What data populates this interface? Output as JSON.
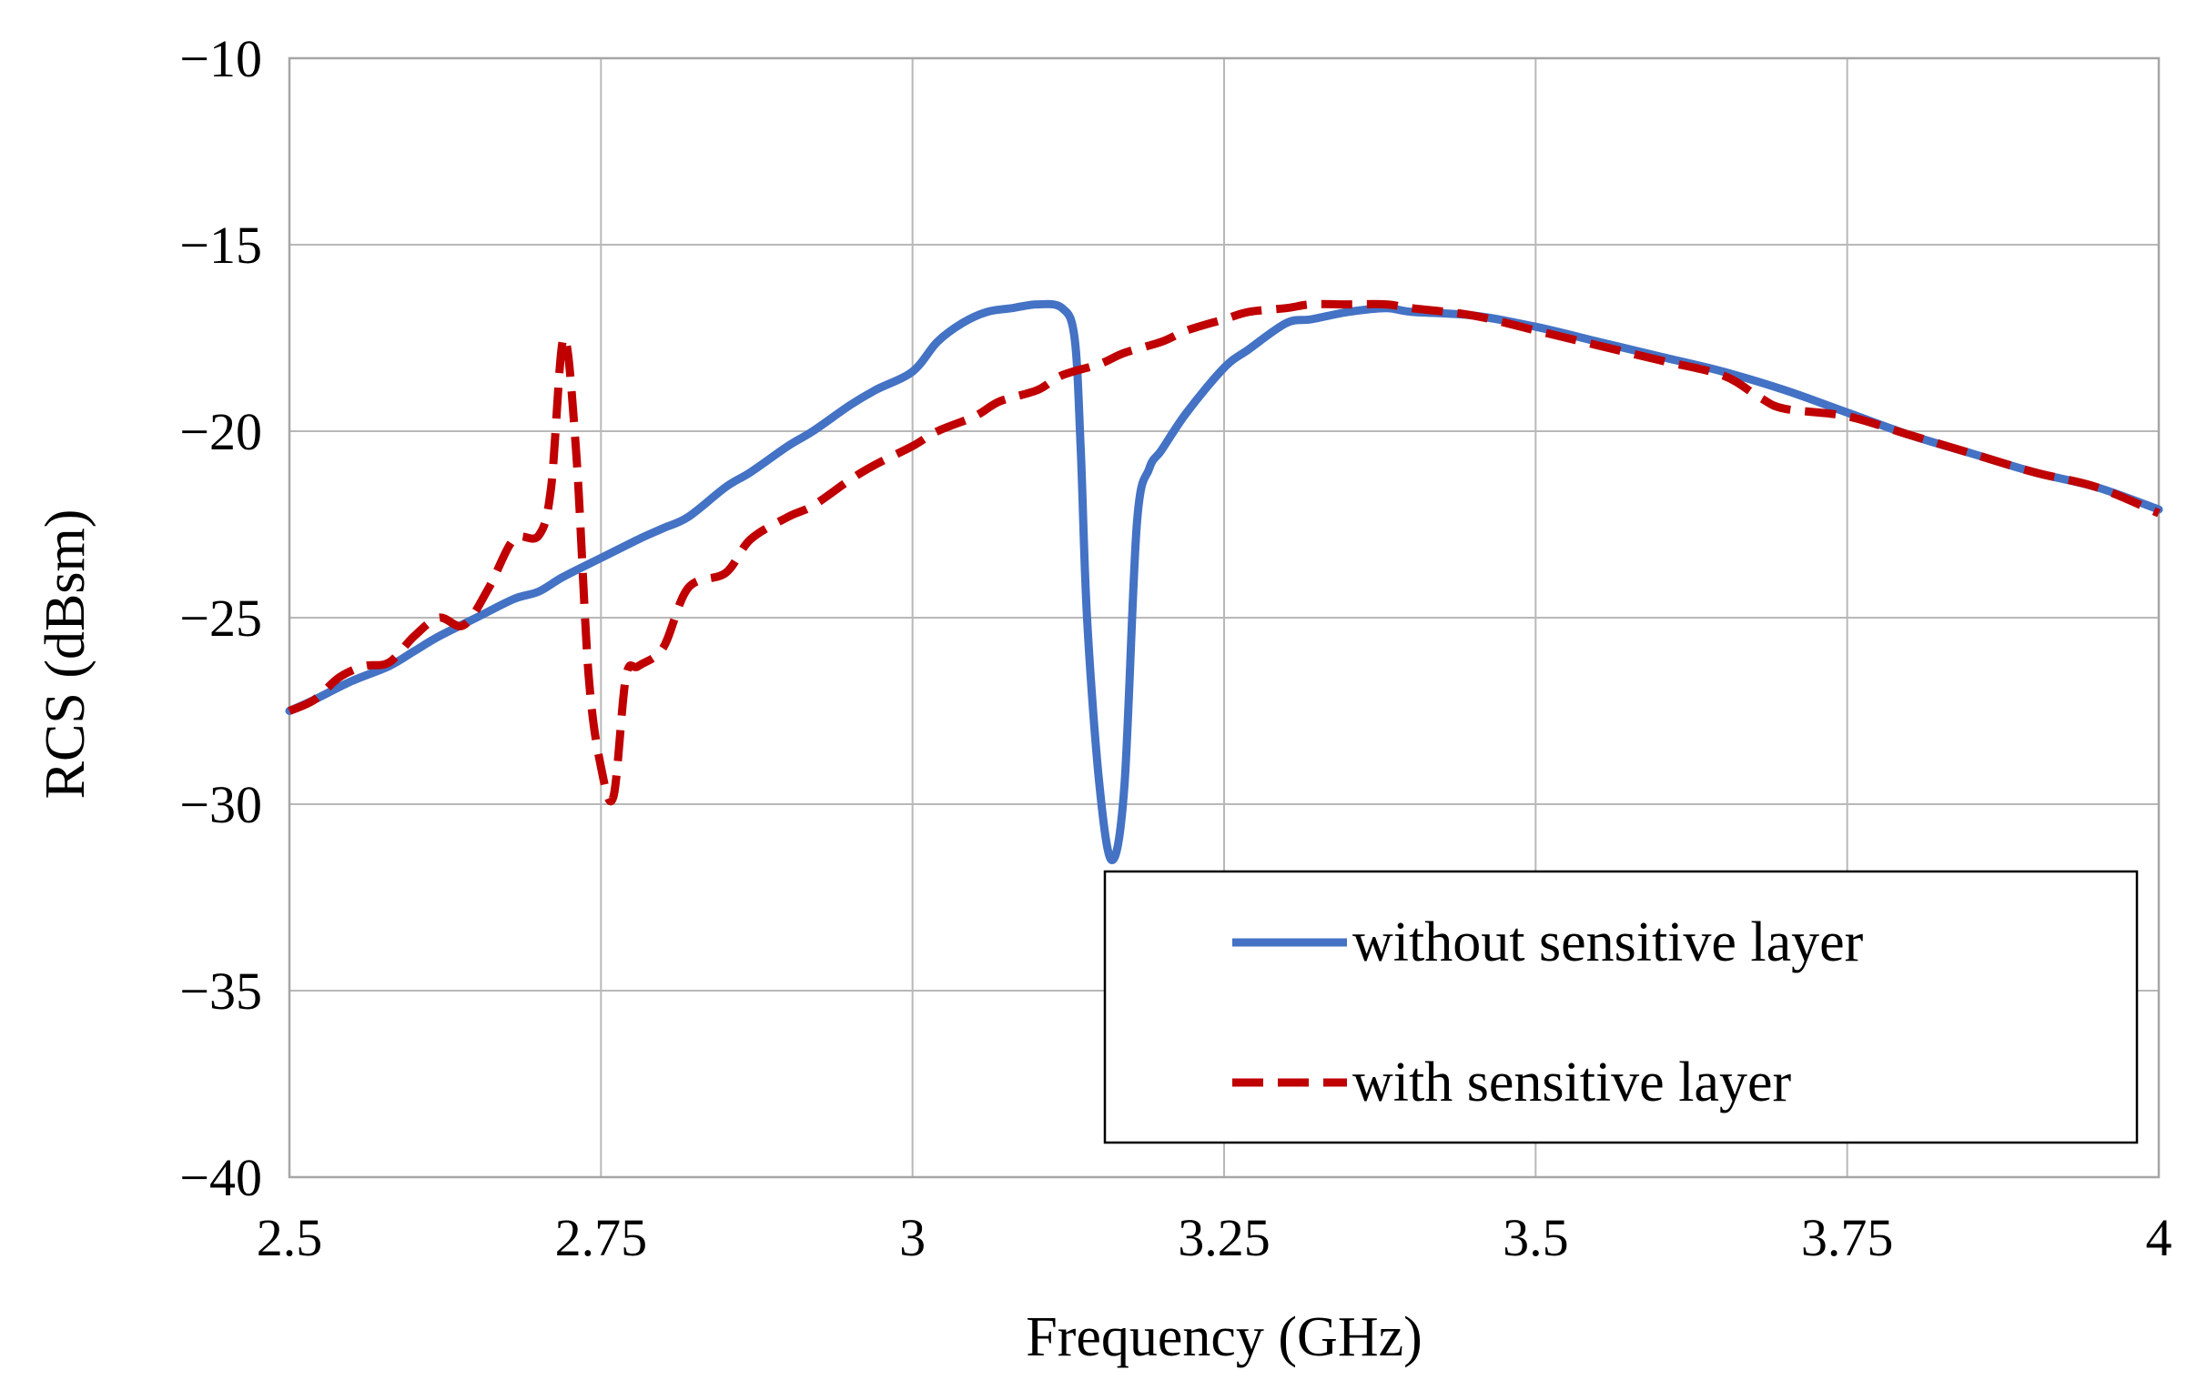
{
  "chart_data": {
    "type": "line",
    "title": "",
    "xlabel": "Frequency (GHz)",
    "ylabel": "RCS (dBsm)",
    "xlim": [
      2.5,
      4
    ],
    "ylim": [
      -40,
      -10
    ],
    "x_ticks": [
      2.5,
      2.75,
      3,
      3.25,
      3.5,
      3.75,
      4
    ],
    "x_tick_labels": [
      "2.5",
      "2.75",
      "3",
      "3.25",
      "3.5",
      "3.75",
      "4"
    ],
    "y_ticks": [
      -10,
      -15,
      -20,
      -25,
      -30,
      -35,
      -40
    ],
    "y_tick_labels": [
      "−10",
      "−15",
      "−20",
      "−25",
      "−30",
      "−35",
      "−40"
    ],
    "grid": true,
    "legend_position": "bottom-right",
    "series": [
      {
        "name": "without sensitive layer",
        "color": "#4472C4",
        "dash": "solid",
        "x": [
          2.5,
          2.52,
          2.55,
          2.58,
          2.6,
          2.62,
          2.65,
          2.68,
          2.7,
          2.72,
          2.75,
          2.78,
          2.8,
          2.82,
          2.85,
          2.87,
          2.9,
          2.92,
          2.95,
          2.97,
          3.0,
          3.02,
          3.04,
          3.06,
          3.08,
          3.1,
          3.12,
          3.13,
          3.135,
          3.14,
          3.15,
          3.16,
          3.17,
          3.18,
          3.19,
          3.2,
          3.22,
          3.25,
          3.27,
          3.3,
          3.32,
          3.35,
          3.38,
          3.4,
          3.45,
          3.5,
          3.55,
          3.6,
          3.65,
          3.7,
          3.75,
          3.8,
          3.85,
          3.9,
          3.95,
          4.0
        ],
        "y": [
          -27.5,
          -27.2,
          -26.7,
          -26.3,
          -25.9,
          -25.5,
          -25.0,
          -24.5,
          -24.3,
          -23.9,
          -23.4,
          -22.9,
          -22.6,
          -22.3,
          -21.5,
          -21.1,
          -20.4,
          -20.0,
          -19.3,
          -18.9,
          -18.4,
          -17.6,
          -17.1,
          -16.8,
          -16.7,
          -16.6,
          -16.7,
          -17.5,
          -20.5,
          -25.0,
          -29.5,
          -31.5,
          -29.5,
          -22.5,
          -21.0,
          -20.5,
          -19.5,
          -18.3,
          -17.8,
          -17.1,
          -17.0,
          -16.8,
          -16.7,
          -16.8,
          -16.9,
          -17.2,
          -17.6,
          -18.0,
          -18.4,
          -18.9,
          -19.5,
          -20.1,
          -20.6,
          -21.1,
          -21.5,
          -22.1
        ]
      },
      {
        "name": "with sensitive layer",
        "color": "#C00000",
        "dash": "dashed",
        "x": [
          2.5,
          2.52,
          2.54,
          2.56,
          2.58,
          2.6,
          2.62,
          2.64,
          2.66,
          2.68,
          2.7,
          2.71,
          2.72,
          2.73,
          2.74,
          2.75,
          2.76,
          2.77,
          2.78,
          2.8,
          2.82,
          2.85,
          2.87,
          2.9,
          2.92,
          2.95,
          2.97,
          3.0,
          3.02,
          3.05,
          3.07,
          3.1,
          3.12,
          3.15,
          3.17,
          3.2,
          3.22,
          3.25,
          3.27,
          3.3,
          3.32,
          3.35,
          3.38,
          3.4,
          3.45,
          3.5,
          3.55,
          3.6,
          3.65,
          3.68,
          3.7,
          3.75,
          3.8,
          3.85,
          3.9,
          3.95,
          4.0
        ],
        "y": [
          -27.5,
          -27.2,
          -26.6,
          -26.3,
          -26.2,
          -25.5,
          -25.0,
          -25.2,
          -24.2,
          -22.9,
          -22.8,
          -21.5,
          -17.5,
          -20.5,
          -26.5,
          -29.0,
          -29.8,
          -26.6,
          -26.3,
          -25.8,
          -24.2,
          -23.8,
          -22.9,
          -22.3,
          -22.0,
          -21.3,
          -20.9,
          -20.4,
          -20.0,
          -19.6,
          -19.2,
          -18.9,
          -18.5,
          -18.2,
          -17.9,
          -17.6,
          -17.3,
          -17.0,
          -16.8,
          -16.7,
          -16.6,
          -16.6,
          -16.6,
          -16.7,
          -16.9,
          -17.3,
          -17.7,
          -18.1,
          -18.5,
          -19.1,
          -19.4,
          -19.6,
          -20.1,
          -20.6,
          -21.1,
          -21.5,
          -22.2
        ]
      }
    ]
  }
}
